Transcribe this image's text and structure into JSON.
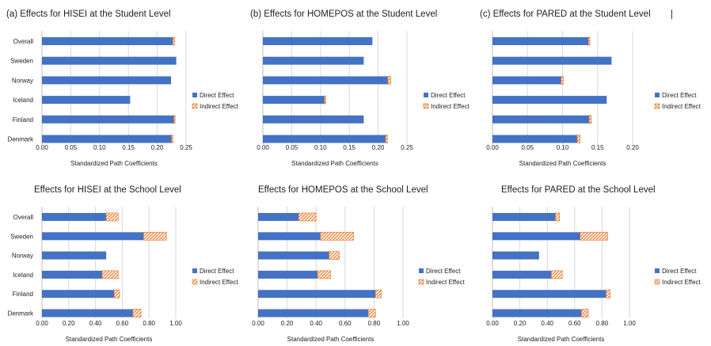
{
  "legend": {
    "direct": "Direct Effect",
    "indirect": "Indirect Effect",
    "direct_color": "#4472c4",
    "indirect_color": "#ed7d31"
  },
  "chart_data": [
    {
      "type": "bar",
      "title": "(a)  Effects for HISEI at the Student Level",
      "xlabel": "Standardized Path Coefficients",
      "categories": [
        "Overall",
        "Sweden",
        "Norway",
        "Iceland",
        "Finland",
        "Denmark"
      ],
      "series": [
        {
          "name": "Direct Effect",
          "values": [
            0.227,
            0.233,
            0.224,
            0.153,
            0.229,
            0.225
          ]
        },
        {
          "name": "Indirect Effect",
          "values": [
            0.003,
            0.0,
            0.0,
            0.0,
            0.002,
            0.002
          ]
        }
      ],
      "xlim": [
        0,
        0.25
      ],
      "ticks": [
        "0.00",
        "0.05",
        "0.10",
        "0.15",
        "0.20",
        "0.25"
      ],
      "tick_values": [
        0,
        0.05,
        0.1,
        0.15,
        0.2,
        0.25
      ],
      "legend_position": "right",
      "grid": true
    },
    {
      "type": "bar",
      "title": "(b)  Effects for HOMEPOS at the Student Level",
      "xlabel": "Standardized Path Coefficients",
      "categories": [
        "",
        "",
        "",
        "",
        "",
        ""
      ],
      "series": [
        {
          "name": "Direct Effect",
          "values": [
            0.19,
            0.175,
            0.217,
            0.107,
            0.175,
            0.213
          ]
        },
        {
          "name": "Indirect Effect",
          "values": [
            0.0,
            0.0,
            0.005,
            0.002,
            0.0,
            0.003
          ]
        }
      ],
      "xlim": [
        0,
        0.25
      ],
      "ticks": [
        "0.00",
        "0.05",
        "0.10",
        "0.15",
        "0.20",
        "0.25"
      ],
      "tick_values": [
        0,
        0.05,
        0.1,
        0.15,
        0.2,
        0.25
      ],
      "legend_position": "right",
      "grid": true
    },
    {
      "type": "bar",
      "title": "(c)  Effects for PARED at the Student Level",
      "xlabel": "Standardized Path Coefficients",
      "categories": [
        "",
        "",
        "",
        "",
        "",
        ""
      ],
      "series": [
        {
          "name": "Direct Effect",
          "values": [
            0.137,
            0.17,
            0.098,
            0.163,
            0.138,
            0.121
          ]
        },
        {
          "name": "Indirect Effect",
          "values": [
            0.002,
            0.0,
            0.003,
            0.0,
            0.003,
            0.004
          ]
        }
      ],
      "xlim": [
        0,
        0.2
      ],
      "ticks": [
        "0.00",
        "0.05",
        "0.10",
        "0.15",
        "0.20"
      ],
      "tick_values": [
        0,
        0.05,
        0.1,
        0.15,
        0.2
      ],
      "legend_position": "right",
      "grid": true
    },
    {
      "type": "bar",
      "title": "Effects for HISEI at the School Level",
      "xlabel": "Standardized Path Coefficients",
      "categories": [
        "Overall",
        "Sweden",
        "Norway",
        "Iceland",
        "Finland",
        "Denmark"
      ],
      "series": [
        {
          "name": "Direct Effect",
          "values": [
            0.48,
            0.76,
            0.48,
            0.45,
            0.54,
            0.68
          ]
        },
        {
          "name": "Indirect Effect",
          "values": [
            0.09,
            0.17,
            0.0,
            0.12,
            0.04,
            0.06
          ]
        }
      ],
      "xlim": [
        0,
        1.0
      ],
      "ticks": [
        "0.00",
        "0.20",
        "0.40",
        "0.60",
        "0.80",
        "1.00"
      ],
      "tick_values": [
        0,
        0.2,
        0.4,
        0.6,
        0.8,
        1.0
      ],
      "legend_position": "right",
      "grid": true
    },
    {
      "type": "bar",
      "title": "Effects for HOMEPOS at the School Level",
      "xlabel": "Standardized Path Coefficients",
      "categories": [
        "",
        "",
        "",
        "",
        "",
        ""
      ],
      "series": [
        {
          "name": "Direct Effect",
          "values": [
            0.28,
            0.43,
            0.49,
            0.41,
            0.81,
            0.76
          ]
        },
        {
          "name": "Indirect Effect",
          "values": [
            0.12,
            0.23,
            0.07,
            0.09,
            0.04,
            0.05
          ]
        }
      ],
      "xlim": [
        0,
        1.0
      ],
      "ticks": [
        "0.00",
        "0.20",
        "0.40",
        "0.60",
        "0.80",
        "1.00"
      ],
      "tick_values": [
        0,
        0.2,
        0.4,
        0.6,
        0.8,
        1.0
      ],
      "legend_position": "right",
      "grid": true
    },
    {
      "type": "bar",
      "title": "Effects for PARED at the School Level",
      "xlabel": "Standardized Path Coefficients",
      "categories": [
        "",
        "",
        "",
        "",
        "",
        ""
      ],
      "series": [
        {
          "name": "Direct Effect",
          "values": [
            0.46,
            0.64,
            0.34,
            0.43,
            0.83,
            0.65
          ]
        },
        {
          "name": "Indirect Effect",
          "values": [
            0.03,
            0.2,
            0.0,
            0.08,
            0.03,
            0.05
          ]
        }
      ],
      "xlim": [
        0,
        1.0
      ],
      "ticks": [
        "0.00",
        "0.20",
        "0.40",
        "0.60",
        "0.80",
        "1.00"
      ],
      "tick_values": [
        0,
        0.2,
        0.4,
        0.6,
        0.8,
        1.0
      ],
      "legend_position": "right",
      "grid": true
    }
  ]
}
